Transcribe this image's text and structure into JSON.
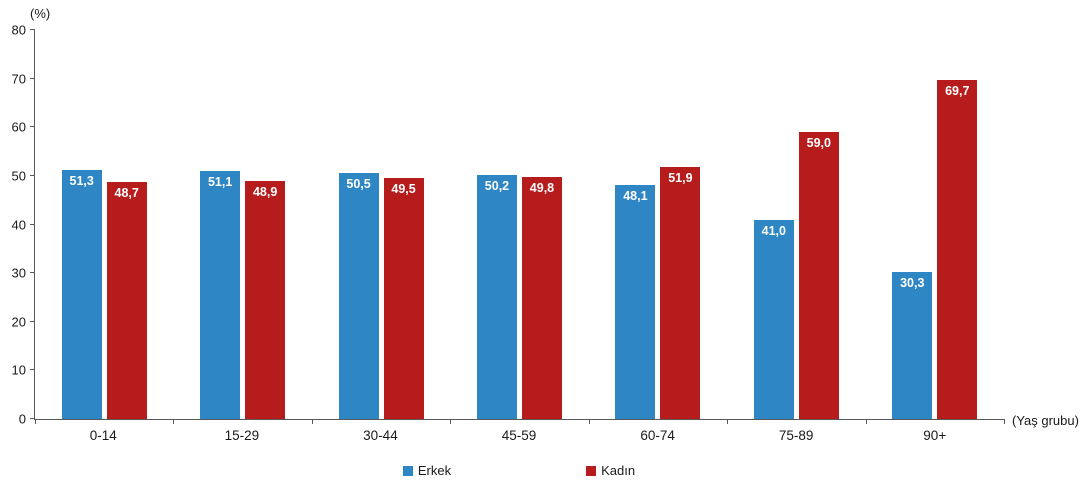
{
  "labels": {
    "y_unit": "(%)",
    "x_unit": "(Yaş grubu)"
  },
  "chart_data": {
    "type": "bar",
    "title": "",
    "categories": [
      "0-14",
      "15-29",
      "30-44",
      "45-59",
      "60-74",
      "75-89",
      "90+"
    ],
    "series": [
      {
        "name": "Erkek",
        "color": "#2e86c5",
        "values": [
          51.3,
          51.1,
          50.5,
          50.2,
          48.1,
          41.0,
          30.3
        ]
      },
      {
        "name": "Kadın",
        "color": "#b71c1c",
        "values": [
          48.7,
          48.9,
          49.5,
          49.8,
          51.9,
          59.0,
          69.7
        ]
      }
    ],
    "xlabel": "(Yaş grubu)",
    "ylabel": "(%)",
    "ylim": [
      0,
      80
    ],
    "ytick_step": 10,
    "grid": false,
    "legend_position": "bottom",
    "value_label_format": "comma-decimal"
  }
}
